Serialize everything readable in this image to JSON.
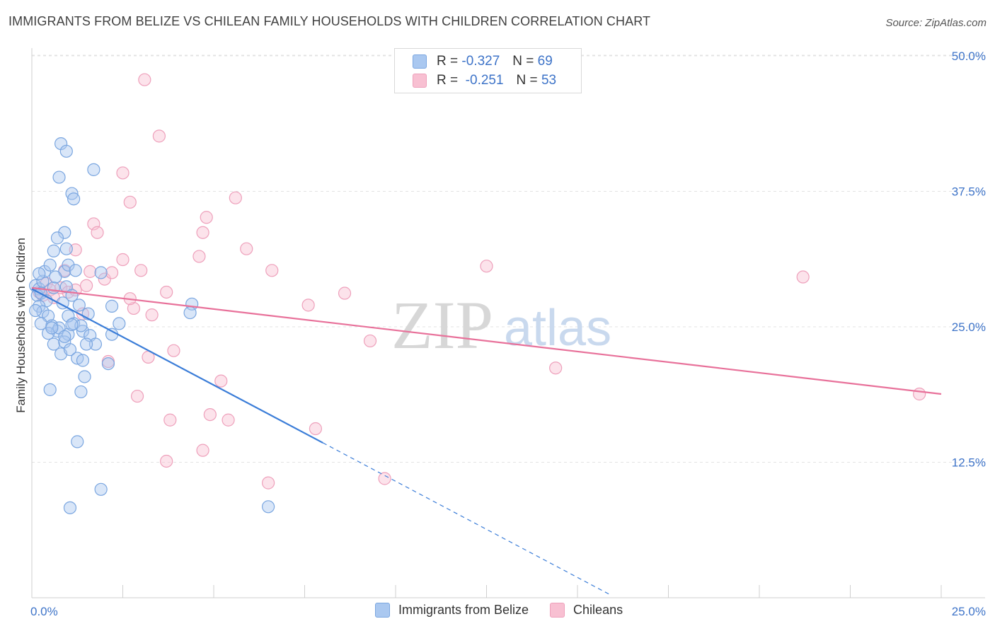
{
  "title": "IMMIGRANTS FROM BELIZE VS CHILEAN FAMILY HOUSEHOLDS WITH CHILDREN CORRELATION CHART",
  "source": "Source: ZipAtlas.com",
  "watermark": {
    "zip": "ZIP",
    "atlas": "atlas"
  },
  "legend_top": [
    {
      "r_label": "R =",
      "r_value": "-0.327",
      "n_label": "N =",
      "n_value": "69",
      "color": "#aac8f0",
      "border": "#7aa6e0"
    },
    {
      "r_label": "R =",
      "r_value": "-0.251",
      "n_label": "N =",
      "n_value": "53",
      "color": "#f8c0d2",
      "border": "#eea0bb"
    }
  ],
  "legend_bottom": [
    {
      "label": "Immigrants from Belize",
      "color": "#aac8f0",
      "border": "#7aa6e0"
    },
    {
      "label": "Chileans",
      "color": "#f8c0d2",
      "border": "#eea0bb"
    }
  ],
  "chart_data": {
    "type": "scatter",
    "title": "IMMIGRANTS FROM BELIZE VS CHILEAN FAMILY HOUSEHOLDS WITH CHILDREN CORRELATION CHART",
    "xlabel": "",
    "ylabel": "Family Households with Children",
    "xlim": [
      0,
      25
    ],
    "ylim": [
      0,
      52
    ],
    "x_tick_labels": [
      "0.0%",
      "25.0%"
    ],
    "y_ticks": [
      12.5,
      25.0,
      37.5,
      50.0
    ],
    "y_tick_labels": [
      "12.5%",
      "25.0%",
      "37.5%",
      "50.0%"
    ],
    "grid": "horizontal-dashed",
    "legend": "top-center and bottom",
    "series": [
      {
        "name": "Immigrants from Belize",
        "color": "#3b7dd8",
        "fill": "#aac8f0",
        "trend": {
          "x0": 0,
          "y0": 28.5,
          "x1": 8.0,
          "y1": 14.3,
          "dashed_to_x": 15.9
        },
        "points": [
          [
            0.1,
            28.8
          ],
          [
            0.2,
            28.5
          ],
          [
            0.15,
            27.9
          ],
          [
            0.3,
            29.2
          ],
          [
            0.25,
            28.1
          ],
          [
            0.4,
            27.4
          ],
          [
            0.35,
            30.1
          ],
          [
            0.5,
            30.7
          ],
          [
            0.6,
            28.6
          ],
          [
            0.2,
            26.9
          ],
          [
            0.3,
            26.4
          ],
          [
            0.45,
            26.0
          ],
          [
            0.55,
            25.1
          ],
          [
            0.7,
            24.6
          ],
          [
            0.6,
            23.4
          ],
          [
            0.8,
            22.5
          ],
          [
            0.9,
            30.1
          ],
          [
            0.65,
            29.6
          ],
          [
            1.0,
            30.7
          ],
          [
            1.2,
            30.2
          ],
          [
            0.95,
            28.7
          ],
          [
            0.85,
            27.2
          ],
          [
            1.1,
            27.9
          ],
          [
            1.3,
            27.0
          ],
          [
            0.75,
            24.9
          ],
          [
            1.0,
            24.3
          ],
          [
            1.15,
            25.3
          ],
          [
            0.9,
            23.6
          ],
          [
            1.05,
            22.9
          ],
          [
            1.25,
            22.1
          ],
          [
            1.4,
            24.6
          ],
          [
            1.6,
            24.2
          ],
          [
            1.75,
            23.4
          ],
          [
            1.5,
            23.4
          ],
          [
            1.35,
            25.1
          ],
          [
            1.55,
            26.2
          ],
          [
            1.9,
            30.0
          ],
          [
            2.2,
            26.9
          ],
          [
            2.4,
            25.3
          ],
          [
            2.2,
            24.3
          ],
          [
            2.1,
            21.6
          ],
          [
            1.4,
            21.9
          ],
          [
            1.45,
            20.4
          ],
          [
            1.35,
            19.0
          ],
          [
            0.5,
            19.2
          ],
          [
            0.9,
            33.7
          ],
          [
            0.7,
            33.2
          ],
          [
            0.95,
            32.2
          ],
          [
            1.1,
            37.3
          ],
          [
            1.15,
            36.8
          ],
          [
            0.75,
            38.8
          ],
          [
            0.8,
            41.9
          ],
          [
            0.95,
            41.2
          ],
          [
            1.7,
            39.5
          ],
          [
            0.2,
            29.9
          ],
          [
            0.6,
            32.0
          ],
          [
            1.25,
            14.4
          ],
          [
            1.9,
            10.0
          ],
          [
            1.05,
            8.3
          ],
          [
            6.5,
            8.4
          ],
          [
            4.4,
            27.1
          ],
          [
            4.35,
            26.3
          ],
          [
            0.1,
            26.5
          ],
          [
            0.25,
            25.3
          ],
          [
            0.45,
            24.4
          ],
          [
            0.55,
            24.9
          ],
          [
            1.0,
            26.0
          ],
          [
            1.1,
            25.2
          ],
          [
            0.9,
            24.1
          ]
        ]
      },
      {
        "name": "Chileans",
        "color": "#e8719a",
        "fill": "#f8c0d2",
        "trend": {
          "x0": 0,
          "y0": 28.6,
          "x1": 25.0,
          "y1": 18.8
        },
        "points": [
          [
            0.2,
            28.2
          ],
          [
            0.3,
            27.9
          ],
          [
            0.4,
            29.0
          ],
          [
            0.5,
            28.4
          ],
          [
            0.6,
            27.7
          ],
          [
            0.8,
            28.6
          ],
          [
            0.9,
            30.2
          ],
          [
            1.0,
            28.2
          ],
          [
            1.2,
            28.4
          ],
          [
            1.4,
            26.2
          ],
          [
            1.5,
            28.8
          ],
          [
            1.6,
            30.1
          ],
          [
            1.7,
            34.5
          ],
          [
            1.8,
            33.7
          ],
          [
            1.2,
            32.1
          ],
          [
            2.0,
            29.4
          ],
          [
            2.2,
            30.0
          ],
          [
            2.5,
            31.2
          ],
          [
            2.5,
            39.2
          ],
          [
            2.7,
            36.5
          ],
          [
            3.1,
            47.8
          ],
          [
            3.5,
            42.6
          ],
          [
            3.0,
            30.2
          ],
          [
            2.8,
            26.7
          ],
          [
            3.3,
            26.1
          ],
          [
            3.2,
            22.2
          ],
          [
            3.7,
            28.2
          ],
          [
            3.9,
            22.8
          ],
          [
            2.9,
            18.6
          ],
          [
            3.8,
            16.4
          ],
          [
            3.7,
            12.6
          ],
          [
            4.7,
            13.6
          ],
          [
            4.6,
            31.5
          ],
          [
            4.7,
            33.7
          ],
          [
            4.8,
            35.1
          ],
          [
            4.9,
            16.9
          ],
          [
            5.2,
            20.0
          ],
          [
            5.4,
            16.4
          ],
          [
            5.6,
            36.9
          ],
          [
            5.9,
            32.2
          ],
          [
            6.6,
            30.2
          ],
          [
            6.5,
            10.6
          ],
          [
            7.8,
            15.6
          ],
          [
            7.6,
            27.0
          ],
          [
            8.6,
            28.1
          ],
          [
            9.3,
            23.7
          ],
          [
            9.7,
            11.0
          ],
          [
            12.5,
            30.6
          ],
          [
            14.4,
            21.2
          ],
          [
            21.2,
            29.6
          ],
          [
            24.4,
            18.8
          ],
          [
            2.1,
            21.8
          ],
          [
            2.7,
            27.6
          ]
        ]
      }
    ]
  }
}
